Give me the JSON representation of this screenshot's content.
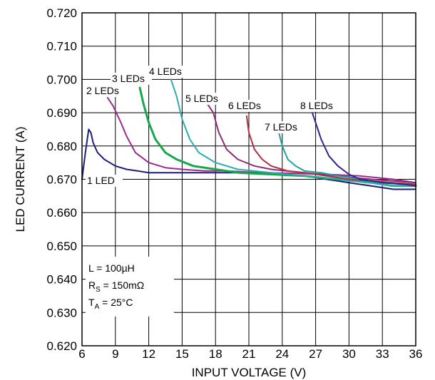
{
  "chart_data": {
    "type": "line",
    "xlabel": "INPUT VOLTAGE (V)",
    "ylabel": "LED CURRENT (A)",
    "xlim": [
      6,
      36
    ],
    "ylim": [
      0.62,
      0.72
    ],
    "x_ticks": [
      "6",
      "9",
      "12",
      "15",
      "18",
      "21",
      "24",
      "27",
      "30",
      "33",
      "36"
    ],
    "y_ticks": [
      "0.620",
      "0.630",
      "0.640",
      "0.650",
      "0.660",
      "0.670",
      "0.680",
      "0.690",
      "0.700",
      "0.710",
      "0.720"
    ],
    "grid": true,
    "series": [
      {
        "name": "1 LED",
        "color": "#1c1f7a",
        "x": [
          6.0,
          6.3,
          6.6,
          6.8,
          7.0,
          7.4,
          8.0,
          9.0,
          10.0,
          11.0,
          12.0,
          14.0,
          16.0,
          18.0,
          20.0,
          22.0,
          24.0,
          26.0,
          28.0,
          30.0,
          32.0,
          34.0,
          36.0
        ],
        "y": [
          0.67,
          0.678,
          0.685,
          0.684,
          0.681,
          0.678,
          0.676,
          0.674,
          0.673,
          0.6725,
          0.672,
          0.672,
          0.672,
          0.672,
          0.672,
          0.6718,
          0.6715,
          0.671,
          0.67,
          0.669,
          0.668,
          0.667,
          0.667
        ]
      },
      {
        "name": "2 LEDs",
        "color": "#9b2a8a",
        "x": [
          8.3,
          8.8,
          9.5,
          10.0,
          10.8,
          12.0,
          13.5,
          15.0,
          17.0,
          19.0,
          22.0,
          25.0,
          28.0,
          31.0,
          34.0,
          36.0
        ],
        "y": [
          0.6945,
          0.692,
          0.687,
          0.683,
          0.678,
          0.675,
          0.6735,
          0.673,
          0.6725,
          0.6725,
          0.672,
          0.6718,
          0.6715,
          0.671,
          0.67,
          0.669
        ]
      },
      {
        "name": "3 LEDs",
        "color": "#15a84a",
        "x": [
          11.2,
          11.5,
          12.0,
          12.6,
          13.5,
          14.5,
          16.0,
          18.0,
          20.0,
          23.0,
          26.0,
          29.0,
          32.0,
          34.0,
          36.0
        ],
        "y": [
          0.6975,
          0.693,
          0.687,
          0.682,
          0.678,
          0.676,
          0.674,
          0.673,
          0.672,
          0.6715,
          0.671,
          0.67,
          0.669,
          0.668,
          0.668
        ]
      },
      {
        "name": "4 LEDs",
        "color": "#2aacb0",
        "x": [
          14.0,
          14.5,
          15.0,
          15.7,
          16.5,
          18.0,
          20.0,
          23.0,
          26.0,
          29.0,
          32.0,
          34.0,
          36.0
        ],
        "y": [
          0.7,
          0.695,
          0.688,
          0.682,
          0.678,
          0.675,
          0.673,
          0.672,
          0.671,
          0.67,
          0.669,
          0.668,
          0.668
        ]
      },
      {
        "name": "5 LEDs",
        "color": "#8e2a78",
        "x": [
          17.3,
          17.8,
          18.3,
          19.0,
          20.0,
          21.5,
          23.0,
          26.0,
          29.0,
          32.0,
          34.0,
          36.0
        ],
        "y": [
          0.6925,
          0.69,
          0.684,
          0.679,
          0.676,
          0.674,
          0.673,
          0.672,
          0.671,
          0.67,
          0.6695,
          0.669
        ]
      },
      {
        "name": "6 LEDs",
        "color": "#b03040",
        "x": [
          20.8,
          21.0,
          21.5,
          22.2,
          23.0,
          24.5,
          26.0,
          28.0,
          30.0,
          32.0,
          34.0,
          36.0
        ],
        "y": [
          0.689,
          0.684,
          0.679,
          0.676,
          0.674,
          0.6725,
          0.672,
          0.671,
          0.67,
          0.6695,
          0.669,
          0.6685
        ]
      },
      {
        "name": "7 LEDs",
        "color": "#1aa4a6",
        "x": [
          23.7,
          24.0,
          24.5,
          25.2,
          26.0,
          27.5,
          29.0,
          31.0,
          33.0,
          35.0,
          36.0
        ],
        "y": [
          0.684,
          0.68,
          0.676,
          0.674,
          0.6725,
          0.672,
          0.671,
          0.67,
          0.669,
          0.6685,
          0.668
        ]
      },
      {
        "name": "8 LEDs",
        "color": "#2a2a8a",
        "x": [
          26.7,
          27.0,
          27.5,
          28.2,
          29.0,
          30.0,
          31.0,
          33.0,
          35.0,
          36.0
        ],
        "y": [
          0.69,
          0.687,
          0.682,
          0.677,
          0.674,
          0.6715,
          0.67,
          0.669,
          0.6685,
          0.668
        ]
      }
    ],
    "curve_labels": [
      "1 LED",
      "2 LEDs",
      "3 LEDs",
      "4 LEDs",
      "5 LEDs",
      "6 LEDs",
      "7 LEDs",
      "8 LEDs"
    ],
    "notes": {
      "line1": "L = 100µH",
      "line2_main": "R",
      "line2_sub": "S",
      "line2_rest": " = 150mΩ",
      "line3_main": "T",
      "line3_sub": "A",
      "line3_rest": " = 25°C"
    }
  }
}
